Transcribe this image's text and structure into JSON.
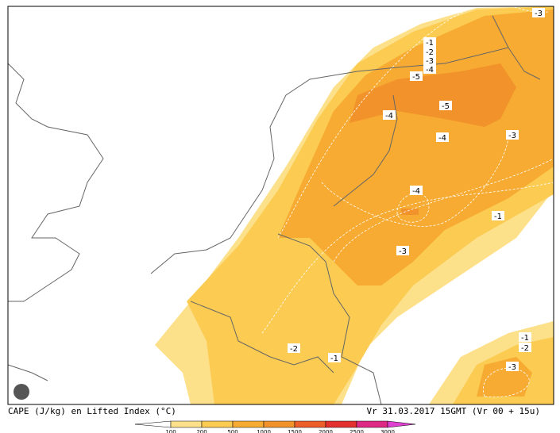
{
  "map": {
    "contour_labels": [
      "-3",
      "-1",
      "-2",
      "-3",
      "-4",
      "-5",
      "-5",
      "-4",
      "-4",
      "-3",
      "-4",
      "-1",
      "-3",
      "-2",
      "-1",
      "-1",
      "-2",
      "-3"
    ],
    "caption_left": "CAPE (J/kg) en Lifted Index (°C)",
    "caption_right": "Vr 31.03.2017 15GMT (Vr 00 + 15u)",
    "legend": {
      "ticks": [
        100,
        200,
        500,
        1000,
        1500,
        2000,
        2500,
        3000
      ],
      "colors": [
        "#ffffff",
        "#fde08a",
        "#fbcb52",
        "#f7ab32",
        "#f2922a",
        "#ec5e2a",
        "#e4302e",
        "#de2a84",
        "#e040d0"
      ]
    }
  }
}
